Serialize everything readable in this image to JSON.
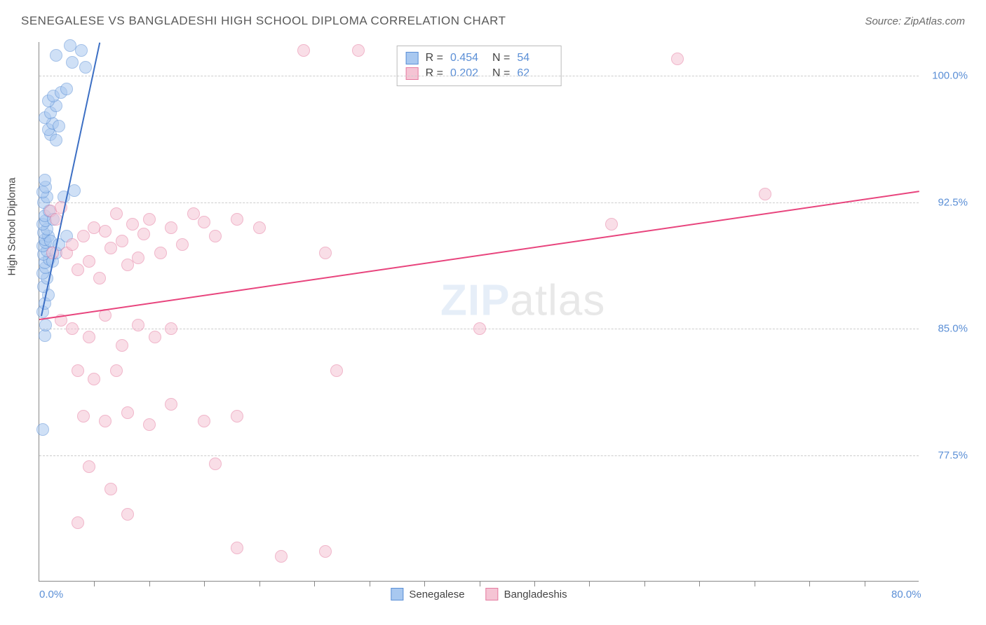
{
  "header": {
    "title": "SENEGALESE VS BANGLADESHI HIGH SCHOOL DIPLOMA CORRELATION CHART",
    "source": "Source: ZipAtlas.com"
  },
  "watermark": {
    "part1": "ZIP",
    "part2": "atlas"
  },
  "chart": {
    "type": "scatter",
    "y_axis_label": "High School Diploma",
    "background_color": "#ffffff",
    "grid_color": "#cccccc",
    "axis_color": "#888888",
    "tick_label_color": "#5b8fd6",
    "tick_label_fontsize": 15,
    "axis_label_fontsize": 15,
    "xlim": [
      0,
      80
    ],
    "ylim": [
      70,
      102
    ],
    "x_ticks": [
      0,
      80
    ],
    "x_tick_labels": [
      "0.0%",
      "80.0%"
    ],
    "x_minor_ticks": [
      5,
      10,
      15,
      20,
      25,
      30,
      35,
      40,
      45,
      50,
      55,
      60,
      65,
      70,
      75
    ],
    "y_ticks": [
      77.5,
      85.0,
      92.5,
      100.0
    ],
    "y_tick_labels": [
      "77.5%",
      "85.0%",
      "92.5%",
      "100.0%"
    ],
    "point_radius": 9,
    "point_opacity": 0.55,
    "series": [
      {
        "name": "Senegalese",
        "color_fill": "#a8c8f0",
        "color_stroke": "#5b8fd6",
        "R": "0.454",
        "N": "54",
        "trend": {
          "x1": 0.2,
          "y1": 85.8,
          "x2": 5.5,
          "y2": 102,
          "color": "#3c6fc4",
          "width": 2
        },
        "points": [
          [
            0.3,
            79.0
          ],
          [
            0.5,
            84.6
          ],
          [
            0.6,
            85.2
          ],
          [
            0.3,
            86.0
          ],
          [
            0.5,
            86.5
          ],
          [
            0.8,
            87.0
          ],
          [
            0.4,
            87.5
          ],
          [
            0.7,
            88.0
          ],
          [
            0.3,
            88.3
          ],
          [
            0.6,
            88.6
          ],
          [
            0.5,
            88.9
          ],
          [
            0.9,
            89.1
          ],
          [
            0.4,
            89.4
          ],
          [
            0.7,
            89.6
          ],
          [
            0.3,
            89.9
          ],
          [
            0.6,
            90.1
          ],
          [
            0.5,
            90.3
          ],
          [
            0.8,
            90.5
          ],
          [
            0.4,
            90.7
          ],
          [
            0.7,
            90.9
          ],
          [
            0.3,
            91.2
          ],
          [
            0.6,
            91.4
          ],
          [
            0.5,
            91.7
          ],
          [
            0.9,
            92.0
          ],
          [
            0.4,
            92.5
          ],
          [
            0.7,
            92.8
          ],
          [
            0.3,
            93.1
          ],
          [
            0.6,
            93.4
          ],
          [
            0.5,
            93.8
          ],
          [
            1.2,
            89.0
          ],
          [
            1.0,
            90.2
          ],
          [
            1.3,
            91.5
          ],
          [
            1.5,
            89.5
          ],
          [
            1.8,
            90.0
          ],
          [
            2.2,
            92.8
          ],
          [
            2.5,
            90.5
          ],
          [
            3.2,
            93.2
          ],
          [
            1.0,
            96.5
          ],
          [
            1.5,
            96.2
          ],
          [
            0.8,
            96.8
          ],
          [
            1.2,
            97.2
          ],
          [
            1.8,
            97.0
          ],
          [
            0.5,
            97.5
          ],
          [
            1.0,
            97.8
          ],
          [
            1.5,
            98.2
          ],
          [
            0.8,
            98.5
          ],
          [
            1.3,
            98.8
          ],
          [
            2.0,
            99.0
          ],
          [
            2.5,
            99.2
          ],
          [
            3.0,
            100.8
          ],
          [
            3.8,
            101.5
          ],
          [
            4.2,
            100.5
          ],
          [
            2.8,
            101.8
          ],
          [
            1.5,
            101.2
          ]
        ]
      },
      {
        "name": "Bangladeshis",
        "color_fill": "#f5c4d4",
        "color_stroke": "#e57ba0",
        "R": "0.202",
        "N": "62",
        "trend": {
          "x1": 0,
          "y1": 85.6,
          "x2": 80,
          "y2": 93.2,
          "color": "#e8447d",
          "width": 2
        },
        "points": [
          [
            1.0,
            92.0
          ],
          [
            1.5,
            91.5
          ],
          [
            2.0,
            92.2
          ],
          [
            2.5,
            89.5
          ],
          [
            3.0,
            90.0
          ],
          [
            3.5,
            88.5
          ],
          [
            4.0,
            90.5
          ],
          [
            4.5,
            89.0
          ],
          [
            5.0,
            91.0
          ],
          [
            5.5,
            88.0
          ],
          [
            6.0,
            90.8
          ],
          [
            6.5,
            89.8
          ],
          [
            7.0,
            91.8
          ],
          [
            7.5,
            90.2
          ],
          [
            8.0,
            88.8
          ],
          [
            8.5,
            91.2
          ],
          [
            9.0,
            89.2
          ],
          [
            9.5,
            90.6
          ],
          [
            10.0,
            91.5
          ],
          [
            11.0,
            89.5
          ],
          [
            12.0,
            91.0
          ],
          [
            13.0,
            90.0
          ],
          [
            14.0,
            91.8
          ],
          [
            15.0,
            91.3
          ],
          [
            16.0,
            90.5
          ],
          [
            18.0,
            91.5
          ],
          [
            20.0,
            91.0
          ],
          [
            26.0,
            89.5
          ],
          [
            2.0,
            85.5
          ],
          [
            3.0,
            85.0
          ],
          [
            4.5,
            84.5
          ],
          [
            6.0,
            85.8
          ],
          [
            7.5,
            84.0
          ],
          [
            9.0,
            85.2
          ],
          [
            10.5,
            84.5
          ],
          [
            12.0,
            85.0
          ],
          [
            3.5,
            82.5
          ],
          [
            5.0,
            82.0
          ],
          [
            7.0,
            82.5
          ],
          [
            4.0,
            79.8
          ],
          [
            6.0,
            79.5
          ],
          [
            8.0,
            80.0
          ],
          [
            10.0,
            79.3
          ],
          [
            12.0,
            80.5
          ],
          [
            15.0,
            79.5
          ],
          [
            18.0,
            79.8
          ],
          [
            4.5,
            76.8
          ],
          [
            6.5,
            75.5
          ],
          [
            8.0,
            74.0
          ],
          [
            3.5,
            73.5
          ],
          [
            16.0,
            77.0
          ],
          [
            18.0,
            72.0
          ],
          [
            22.0,
            71.5
          ],
          [
            26.0,
            71.8
          ],
          [
            27.0,
            82.5
          ],
          [
            24.0,
            101.5
          ],
          [
            29.0,
            101.5
          ],
          [
            40.0,
            85.0
          ],
          [
            52.0,
            91.2
          ],
          [
            58.0,
            101.0
          ],
          [
            66.0,
            93.0
          ],
          [
            1.2,
            89.5
          ]
        ]
      }
    ],
    "bottom_legend": [
      {
        "label": "Senegalese",
        "fill": "#a8c8f0",
        "stroke": "#5b8fd6"
      },
      {
        "label": "Bangladeshis",
        "fill": "#f5c4d4",
        "stroke": "#e57ba0"
      }
    ]
  }
}
